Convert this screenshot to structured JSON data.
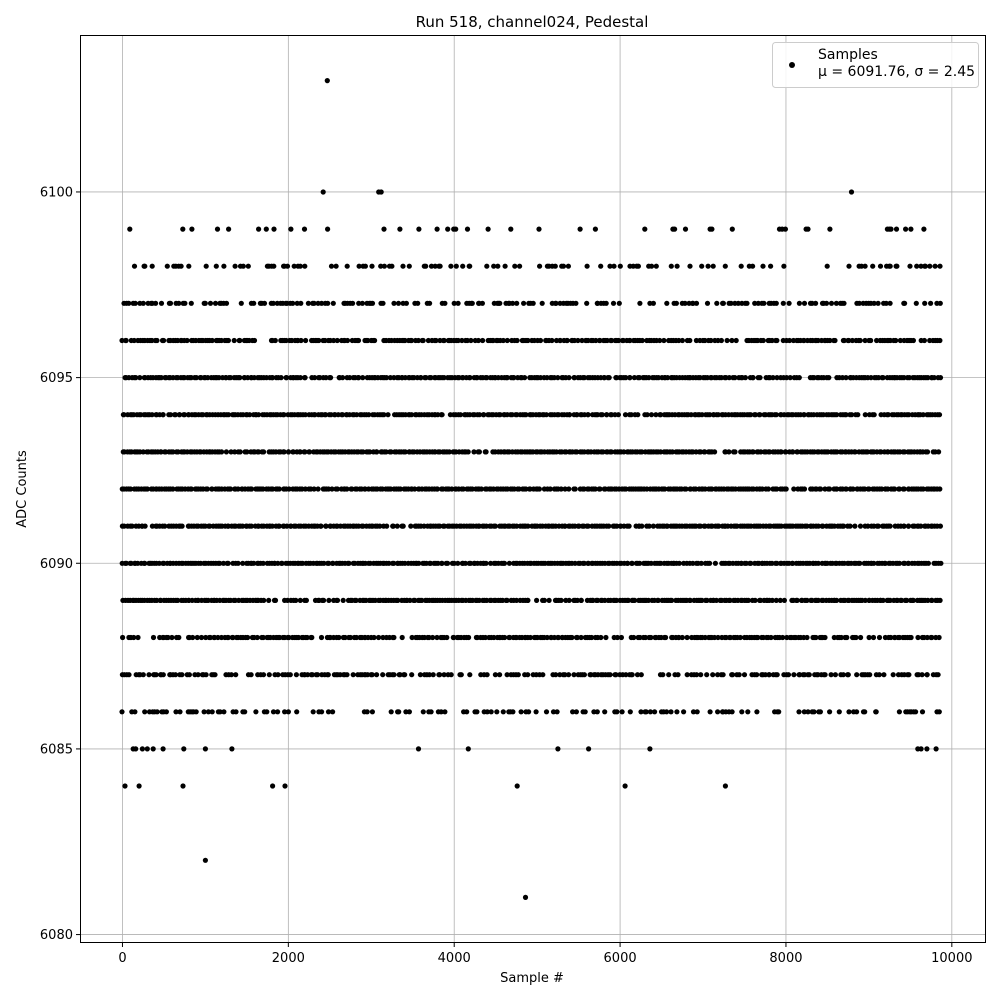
{
  "chart_data": {
    "type": "scatter",
    "title": "Run 518, channel024, Pedestal",
    "xlabel": "Sample #",
    "ylabel": "ADC Counts",
    "xlim": [
      -500,
      10400
    ],
    "ylim": [
      6079.8,
      6104.2
    ],
    "x_ticks": [
      0,
      2000,
      4000,
      6000,
      8000,
      10000
    ],
    "x_tick_labels": [
      "0",
      "2000",
      "4000",
      "6000",
      "8000",
      "10000"
    ],
    "y_ticks": [
      6080,
      6085,
      6090,
      6095,
      6100
    ],
    "y_tick_labels": [
      "6080",
      "6085",
      "6090",
      "6095",
      "6100"
    ],
    "grid": true,
    "legend": {
      "placement": "top-right",
      "entries": [
        {
          "label": "Samples",
          "stats_line": "μ = 6091.76, σ = 2.45"
        }
      ]
    },
    "marker_color": "#000000",
    "sample_count_x_range": [
      0,
      9880
    ],
    "series": [
      {
        "name": "Samples",
        "mean": 6091.76,
        "sigma": 2.45,
        "levels": [
          {
            "y": 6081,
            "x": [
              4860
            ]
          },
          {
            "y": 6082,
            "x": [
              1000
            ]
          },
          {
            "y": 6084,
            "x": [
              30,
              200,
              730,
              1810,
              1960,
              4760,
              6060,
              7270
            ]
          },
          {
            "y": 6085,
            "x": [
              130,
              160,
              240,
              300,
              370,
              490,
              740,
              1000,
              1320,
              3570,
              4170,
              5250,
              5620,
              6360,
              9590,
              9630,
              9700,
              9810
            ]
          },
          {
            "y": 6100,
            "x": [
              2420,
              3090,
              3120,
              8790
            ]
          },
          {
            "y": 6103,
            "x": [
              2470
            ]
          }
        ],
        "density_rows": [
          {
            "y": 6086,
            "coverage": 0.35
          },
          {
            "y": 6087,
            "coverage": 0.55
          },
          {
            "y": 6088,
            "coverage": 0.75
          },
          {
            "y": 6089,
            "coverage": 0.9
          },
          {
            "y": 6090,
            "coverage": 1.0
          },
          {
            "y": 6091,
            "coverage": 1.0
          },
          {
            "y": 6092,
            "coverage": 1.0
          },
          {
            "y": 6093,
            "coverage": 1.0
          },
          {
            "y": 6094,
            "coverage": 0.95
          },
          {
            "y": 6095,
            "coverage": 0.85
          },
          {
            "y": 6096,
            "coverage": 0.7
          },
          {
            "y": 6097,
            "coverage": 0.5
          },
          {
            "y": 6098,
            "coverage": 0.3
          },
          {
            "y": 6099,
            "coverage": 0.08
          }
        ]
      }
    ]
  }
}
